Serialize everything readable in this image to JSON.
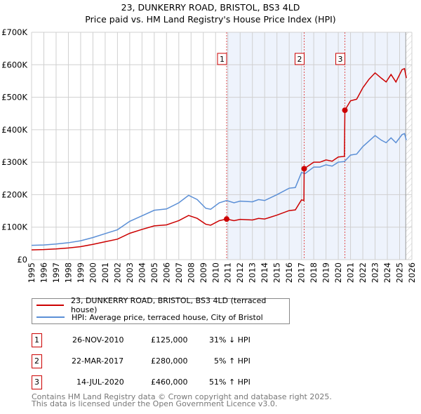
{
  "chart_data": {
    "type": "line",
    "title": "23, DUNKERRY ROAD, BRISTOL, BS3 4LD",
    "subtitle": "Price paid vs. HM Land Registry's House Price Index (HPI)",
    "xlim": [
      1995,
      2026
    ],
    "ylim": [
      0,
      700000
    ],
    "x_ticks": [
      "1995",
      "1996",
      "1997",
      "1998",
      "1999",
      "2000",
      "2001",
      "2002",
      "2003",
      "2004",
      "2005",
      "2006",
      "2007",
      "2008",
      "2009",
      "2010",
      "2011",
      "2012",
      "2013",
      "2014",
      "2015",
      "2016",
      "2017",
      "2018",
      "2019",
      "2020",
      "2021",
      "2022",
      "2023",
      "2024",
      "2025",
      "2026"
    ],
    "y_ticks": [
      {
        "v": 0,
        "label": "£0"
      },
      {
        "v": 100000,
        "label": "£100K"
      },
      {
        "v": 200000,
        "label": "£200K"
      },
      {
        "v": 300000,
        "label": "£300K"
      },
      {
        "v": 400000,
        "label": "£400K"
      },
      {
        "v": 500000,
        "label": "£500K"
      },
      {
        "v": 600000,
        "label": "£600K"
      },
      {
        "v": 700000,
        "label": "£700K"
      }
    ],
    "grid": true,
    "shaded_from": 2010.9,
    "hatched_from": 2025.5,
    "series": [
      {
        "name": "23, DUNKERRY ROAD, BRISTOL, BS3 4LD (terraced house)",
        "color": "#cc0000",
        "x": [
          1995,
          1996,
          1997,
          1998,
          1999,
          2000,
          2001,
          2002,
          2003,
          2004,
          2005,
          2006,
          2007,
          2007.8,
          2008.5,
          2009.2,
          2009.6,
          2010.3,
          2010.9,
          2011.5,
          2012,
          2013,
          2013.5,
          2014,
          2015,
          2016,
          2016.5,
          2017,
          2017.2,
          2017.22,
          2018,
          2018.5,
          2019,
          2019.5,
          2020,
          2020.5,
          2020.54,
          2021,
          2021.5,
          2022,
          2022.5,
          2023,
          2023.5,
          2023.9,
          2024.3,
          2024.7,
          2025.2,
          2025.4,
          2025.55
        ],
        "y": [
          30000,
          31000,
          33000,
          36000,
          40000,
          47000,
          55000,
          63000,
          81000,
          93000,
          104000,
          107000,
          120000,
          136000,
          127000,
          109000,
          106000,
          120000,
          125000,
          120000,
          124000,
          122000,
          127000,
          125000,
          137000,
          151000,
          153000,
          184000,
          182000,
          280000,
          300000,
          300000,
          307000,
          303000,
          316000,
          318000,
          460000,
          489000,
          494000,
          529000,
          555000,
          575000,
          559000,
          547000,
          570000,
          547000,
          585000,
          588000,
          559000
        ]
      },
      {
        "name": "HPI: Average price, terraced house, City of Bristol",
        "color": "#5b8fd6",
        "x": [
          1995,
          1996,
          1997,
          1998,
          1999,
          2000,
          2001,
          2002,
          2003,
          2004,
          2005,
          2006,
          2007,
          2007.8,
          2008.5,
          2009.2,
          2009.6,
          2010.3,
          2010.9,
          2011.5,
          2012,
          2013,
          2013.5,
          2014,
          2015,
          2016,
          2016.5,
          2017,
          2017.3,
          2018,
          2018.5,
          2019,
          2019.5,
          2020,
          2020.5,
          2021,
          2021.5,
          2022,
          2022.5,
          2023,
          2023.5,
          2023.9,
          2024.3,
          2024.7,
          2025.2,
          2025.4,
          2025.55
        ],
        "y": [
          44000,
          45000,
          48000,
          52000,
          58000,
          68000,
          80000,
          92000,
          118000,
          135000,
          152000,
          156000,
          175000,
          198000,
          185000,
          158000,
          155000,
          175000,
          182000,
          175000,
          180000,
          178000,
          185000,
          182000,
          200000,
          220000,
          222000,
          268000,
          265000,
          285000,
          285000,
          292000,
          288000,
          300000,
          302000,
          322000,
          325000,
          348000,
          365000,
          382000,
          368000,
          360000,
          375000,
          360000,
          385000,
          388000,
          368000
        ]
      }
    ],
    "sales": [
      {
        "n": "1",
        "x": 2010.9,
        "y": 125000
      },
      {
        "n": "2",
        "x": 2017.22,
        "y": 280000
      },
      {
        "n": "3",
        "x": 2020.54,
        "y": 460000
      }
    ]
  },
  "legend": [
    "23, DUNKERRY ROAD, BRISTOL, BS3 4LD (terraced house)",
    "HPI: Average price, terraced house, City of Bristol"
  ],
  "table": [
    {
      "n": "1",
      "date": "26-NOV-2010",
      "price": "£125,000",
      "hpi": "31% ↓ HPI"
    },
    {
      "n": "2",
      "date": "22-MAR-2017",
      "price": "£280,000",
      "hpi": "5% ↑ HPI"
    },
    {
      "n": "3",
      "date": "14-JUL-2020",
      "price": "£460,000",
      "hpi": "51% ↑ HPI"
    }
  ],
  "footer": [
    "Contains HM Land Registry data © Crown copyright and database right 2025.",
    "This data is licensed under the Open Government Licence v3.0."
  ]
}
